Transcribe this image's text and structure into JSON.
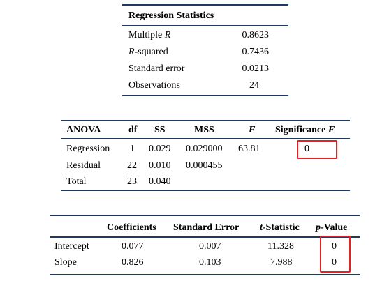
{
  "regression_statistics": {
    "title": "Regression Statistics",
    "rows": [
      {
        "label_pre": "Multiple ",
        "label_it": "R",
        "label_post": "",
        "value": "0.8623"
      },
      {
        "label_pre": "",
        "label_it": "R",
        "label_post": "-squared",
        "value": "0.7436"
      },
      {
        "label_pre": "Standard error",
        "label_it": "",
        "label_post": "",
        "value": "0.0213"
      },
      {
        "label_pre": "Observations",
        "label_it": "",
        "label_post": "",
        "value": "24"
      }
    ]
  },
  "anova": {
    "headers": {
      "source": "ANOVA",
      "df": "df",
      "ss": "SS",
      "mss": "MSS",
      "f": "F",
      "sig_pre": "Significance ",
      "sig_it": "F"
    },
    "rows": [
      {
        "source": "Regression",
        "df": "1",
        "ss": "0.029",
        "mss": "0.029000",
        "f": "63.81",
        "sig": "0"
      },
      {
        "source": "Residual",
        "df": "22",
        "ss": "0.010",
        "mss": "0.000455",
        "f": "",
        "sig": ""
      },
      {
        "source": "Total",
        "df": "23",
        "ss": "0.040",
        "mss": "",
        "f": "",
        "sig": ""
      }
    ]
  },
  "coefficients": {
    "headers": {
      "coef": "Coefficients",
      "se": "Standard Error",
      "t_it": "t",
      "t_post": "-Statistic",
      "p_it": "p",
      "p_post": "-Value"
    },
    "rows": [
      {
        "name": "Intercept",
        "coef": "0.077",
        "se": "0.007",
        "t": "11.328",
        "p": "0"
      },
      {
        "name": "Slope",
        "coef": "0.826",
        "se": "0.103",
        "t": "7.988",
        "p": "0"
      }
    ]
  },
  "colors": {
    "rule": "#1e3a5f",
    "highlight": "#e8201f"
  }
}
